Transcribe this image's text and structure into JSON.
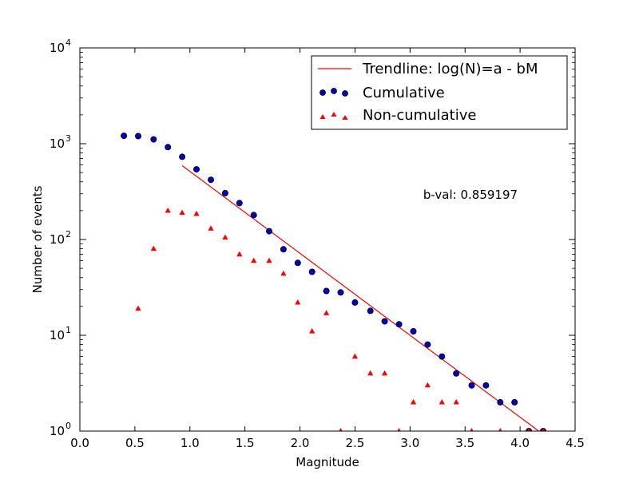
{
  "chart_data": {
    "type": "scatter",
    "xlabel": "Magnitude",
    "ylabel": "Number of events",
    "xlim": [
      0.0,
      4.5
    ],
    "ylim": [
      1,
      10000
    ],
    "yscale": "log",
    "grid": false,
    "legend_position": "top-right",
    "x_ticks": [
      "0.0",
      "0.5",
      "1.0",
      "1.5",
      "2.0",
      "2.5",
      "3.0",
      "3.5",
      "4.0",
      "4.5"
    ],
    "y_ticks": [
      {
        "base": "10",
        "exp": "0",
        "value": 1
      },
      {
        "base": "10",
        "exp": "1",
        "value": 10
      },
      {
        "base": "10",
        "exp": "2",
        "value": 100
      },
      {
        "base": "10",
        "exp": "3",
        "value": 1000
      },
      {
        "base": "10",
        "exp": "4",
        "value": 10000
      }
    ],
    "annotation": {
      "text": "b-val: 0.859197",
      "x": 3.12,
      "y": 265
    },
    "series": [
      {
        "name": "Trendline: log(N)=a - bM",
        "kind": "line",
        "color": "#ff0000",
        "points": [
          [
            0.93,
            590
          ],
          [
            4.17,
            1
          ]
        ]
      },
      {
        "name": "Cumulative",
        "kind": "scatter-circle",
        "color": "#0000bf",
        "x": [
          0.4,
          0.53,
          0.67,
          0.8,
          0.93,
          1.06,
          1.19,
          1.32,
          1.45,
          1.58,
          1.72,
          1.85,
          1.98,
          2.11,
          2.24,
          2.37,
          2.5,
          2.64,
          2.77,
          2.9,
          3.03,
          3.16,
          3.29,
          3.42,
          3.56,
          3.69,
          3.82,
          3.95,
          4.08,
          4.21
        ],
        "y": [
          1210,
          1200,
          1110,
          920,
          730,
          540,
          420,
          305,
          240,
          180,
          122,
          79,
          57,
          46,
          29,
          28,
          22,
          18,
          14,
          13,
          11,
          8,
          6,
          4,
          3,
          3,
          2,
          2,
          1,
          1
        ]
      },
      {
        "name": "Non-cumulative",
        "kind": "scatter-triangle",
        "color": "#ff0000",
        "x": [
          0.53,
          0.67,
          0.8,
          0.93,
          1.06,
          1.19,
          1.32,
          1.45,
          1.58,
          1.72,
          1.85,
          1.98,
          2.11,
          2.24,
          2.37,
          2.5,
          2.64,
          2.77,
          2.9,
          3.03,
          3.16,
          3.29,
          3.42,
          3.56,
          3.82,
          4.08,
          4.21
        ],
        "y": [
          19,
          80,
          200,
          190,
          185,
          130,
          105,
          70,
          60,
          60,
          44,
          22,
          11,
          17,
          1,
          6,
          4,
          4,
          1,
          2,
          3,
          2,
          2,
          1,
          1,
          1,
          1
        ]
      }
    ]
  }
}
